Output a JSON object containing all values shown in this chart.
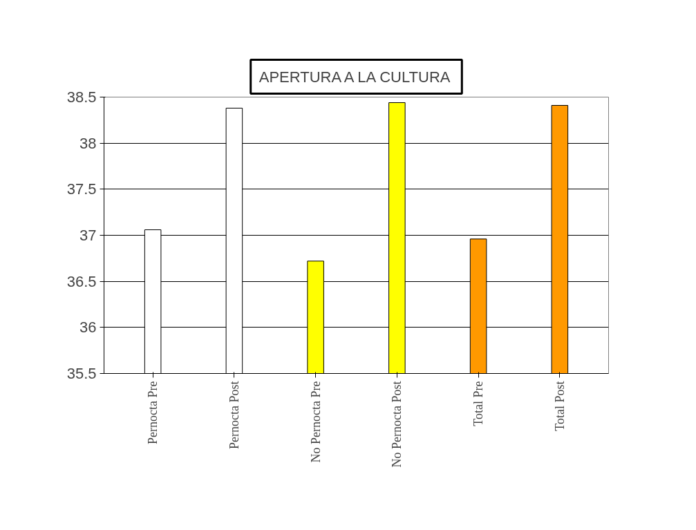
{
  "chart_data": {
    "type": "bar",
    "title": "APERTURA A LA CULTURA",
    "categories": [
      "Pernocta Pre",
      "Pernocta Post",
      "No Pernocta Pre",
      "No Pernocta Post",
      "Total Pre",
      "Total Post"
    ],
    "values": [
      37.06,
      38.38,
      36.72,
      38.44,
      36.96,
      38.41
    ],
    "colors": [
      "#ffffff",
      "#ffffff",
      "#ffff00",
      "#ffff00",
      "#ff9900",
      "#ff9900"
    ],
    "ylim": [
      35.5,
      38.5
    ],
    "yticks": [
      35.5,
      36,
      36.5,
      37,
      37.5,
      38,
      38.5
    ],
    "grid": "y"
  }
}
